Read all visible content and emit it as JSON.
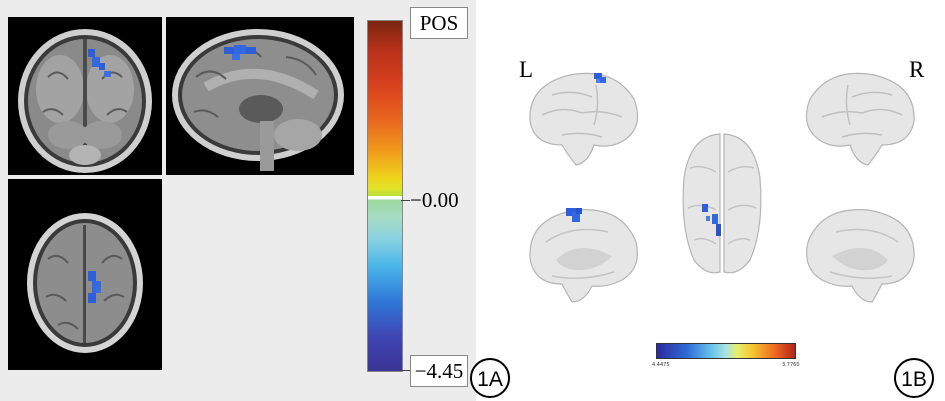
{
  "panel_a": {
    "colorbar": {
      "max_label": "POS",
      "zero_label": "−0.00",
      "min_label": "−4.45"
    },
    "panel_id": "1A"
  },
  "panel_b": {
    "left_label": "L",
    "right_label": "R",
    "colorbar_min": "4.4475",
    "colorbar_max": "3.7760",
    "panel_id": "1B"
  },
  "colors": {
    "activation": "#2f5fd8",
    "brain_surface": "#e6e6e6"
  }
}
